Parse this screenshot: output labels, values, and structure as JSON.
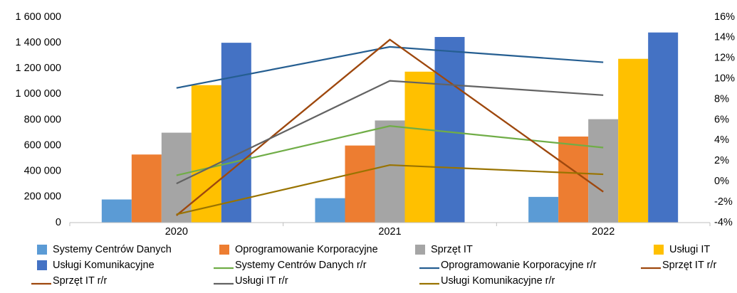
{
  "chart_data": {
    "type": "bar_line",
    "categories": [
      "2020",
      "2021",
      "2022"
    ],
    "series": [
      {
        "name": "Systemy Centrów Danych",
        "type": "bar",
        "color": "#5b9bd5",
        "values": [
          180000,
          190000,
          200000
        ]
      },
      {
        "name": "Oprogramowanie Korporacyjne",
        "type": "bar",
        "color": "#ed7d31",
        "values": [
          530000,
          600000,
          670000
        ]
      },
      {
        "name": "Sprzęt IT",
        "type": "bar",
        "color": "#a5a5a5",
        "values": [
          700000,
          795000,
          805000
        ]
      },
      {
        "name": "Usługi IT",
        "type": "bar",
        "color": "#ffc000",
        "values": [
          1070000,
          1175000,
          1275000
        ]
      },
      {
        "name": "Usługi Komunikacyjne",
        "type": "bar",
        "color": "#4472c4",
        "values": [
          1400000,
          1445000,
          1480000
        ]
      },
      {
        "name": "Systemy Centrów Danych r/r",
        "type": "line",
        "axis": "y2",
        "color": "#70ad47",
        "values": [
          0.6,
          5.4,
          3.3
        ]
      },
      {
        "name": "Oprogramowanie Korporacyjne r/r",
        "type": "line",
        "axis": "y2",
        "color": "#255e91",
        "values": [
          9.1,
          13.1,
          11.6
        ]
      },
      {
        "name": "Sprzęt IT r/r",
        "type": "line",
        "axis": "y2",
        "color": "#9e480e",
        "values": [
          -3.3,
          13.8,
          -1.0
        ]
      },
      {
        "name": "Sprzęt IT r/r",
        "type": "line",
        "axis": "y2",
        "color": "#9e480e",
        "values": [
          -3.3,
          13.8,
          -1.0
        ]
      },
      {
        "name": "Usługi IT r/r",
        "type": "line",
        "axis": "y2",
        "color": "#636363",
        "values": [
          -0.2,
          9.8,
          8.4
        ]
      },
      {
        "name": "Usługi Komunikacyjne r/r",
        "type": "line",
        "axis": "y2",
        "color": "#997300",
        "values": [
          -3.2,
          1.6,
          0.7
        ]
      }
    ],
    "ylim": [
      0,
      1600000
    ],
    "yticks": [
      0,
      {
        "value": 200000,
        "label": "200 000"
      },
      {
        "value": 400000,
        "label": "400 000"
      },
      {
        "value": 600000,
        "label": "600 000"
      },
      {
        "value": 800000,
        "label": "800 000"
      },
      {
        "value": 1000000,
        "label": "1 000 000"
      },
      {
        "value": 1200000,
        "label": "1 200 000"
      },
      {
        "value": 1400000,
        "label": "1 400 000"
      },
      {
        "value": 1600000,
        "label": "1 600 000"
      }
    ],
    "y2lim": [
      -4,
      16
    ],
    "y2ticks": [
      {
        "value": -4,
        "label": "-4%"
      },
      {
        "value": -2,
        "label": "-2%"
      },
      {
        "value": 0,
        "label": "0%"
      },
      {
        "value": 2,
        "label": "2%"
      },
      {
        "value": 4,
        "label": "4%"
      },
      {
        "value": 6,
        "label": "6%"
      },
      {
        "value": 8,
        "label": "8%"
      },
      {
        "value": 10,
        "label": "10%"
      },
      {
        "value": 12,
        "label": "12%"
      },
      {
        "value": 14,
        "label": "14%"
      },
      {
        "value": 16,
        "label": "16%"
      }
    ],
    "grid": false
  }
}
